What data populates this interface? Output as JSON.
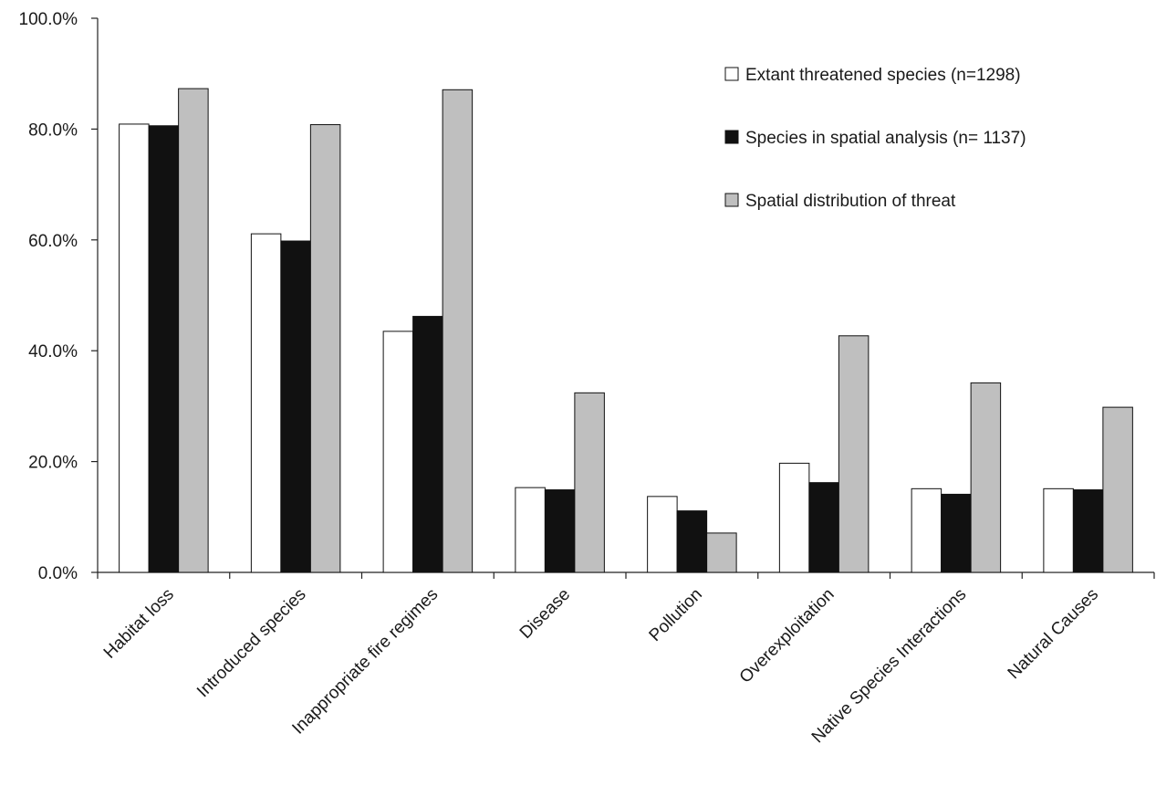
{
  "chart_data": {
    "type": "bar",
    "title": "",
    "xlabel": "",
    "ylabel": "",
    "ylim": [
      0,
      100
    ],
    "y_ticks": [
      "0.0%",
      "20.0%",
      "40.0%",
      "60.0%",
      "80.0%",
      "100.0%"
    ],
    "y_tick_values": [
      0,
      20,
      40,
      60,
      80,
      100
    ],
    "categories": [
      "Habitat loss",
      "Introduced species",
      "Inappropriate fire regimes",
      "Disease",
      "Pollution",
      "Overexploitation",
      "Native Species Interactions",
      "Natural Causes"
    ],
    "series": [
      {
        "name": "Extant threatened species (n=1298)",
        "color": "#ffffff",
        "values": [
          80.9,
          61.1,
          43.5,
          15.3,
          13.7,
          19.7,
          15.1,
          15.1
        ]
      },
      {
        "name": "Species in spatial analysis (n= 1137)",
        "color": "#111111",
        "values": [
          80.6,
          59.8,
          46.2,
          14.9,
          11.1,
          16.2,
          14.1,
          14.9
        ]
      },
      {
        "name": "Spatial distribution of threat",
        "color": "#bfbfbf",
        "values": [
          87.3,
          80.8,
          87.1,
          32.4,
          7.1,
          42.7,
          34.2,
          29.8
        ]
      }
    ],
    "grid": false,
    "legend_position": "top-right"
  }
}
